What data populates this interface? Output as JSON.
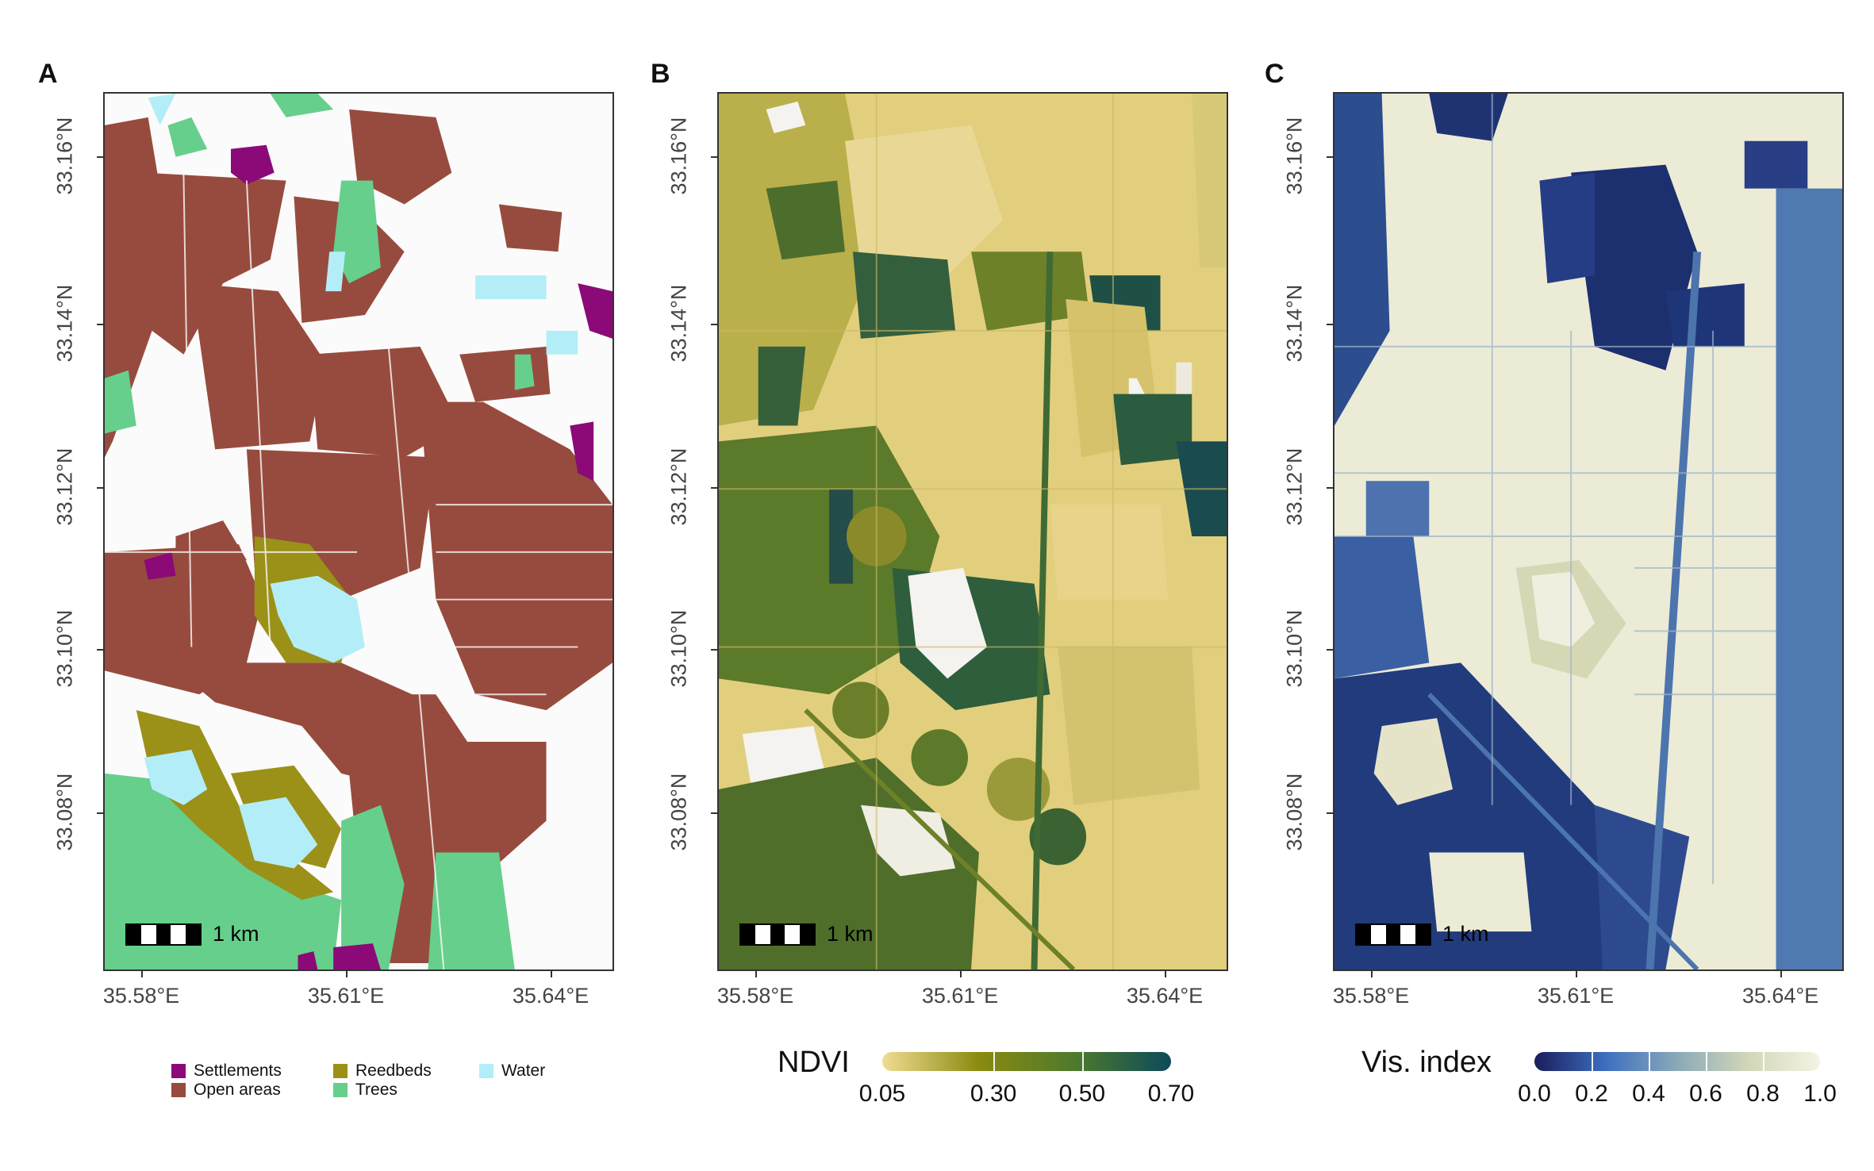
{
  "panels": [
    {
      "letter": "A"
    },
    {
      "letter": "B"
    },
    {
      "letter": "C"
    }
  ],
  "axes": {
    "y_ticks": [
      "33.16°N",
      "33.14°N",
      "33.12°N",
      "33.10°N",
      "33.08°N"
    ],
    "x_ticks": [
      "35.58°E",
      "35.61°E",
      "35.64°E"
    ]
  },
  "scale_bar": {
    "label": "1 km"
  },
  "legend_A": {
    "items": [
      {
        "label": "Settlements",
        "color": "#8b0a77"
      },
      {
        "label": "Open areas",
        "color": "#974b3e"
      },
      {
        "label": "Reedbeds",
        "color": "#9b9118"
      },
      {
        "label": "Trees",
        "color": "#66cf8c"
      },
      {
        "label": "Water",
        "color": "#b3eef8"
      }
    ]
  },
  "colorbar_B": {
    "title": "NDVI",
    "labels": [
      "0.05",
      "0.30",
      "0.50",
      "0.70"
    ],
    "colors": [
      "#f1dc93",
      "#8a8a10",
      "#4e7a2c",
      "#0d4a5a"
    ]
  },
  "colorbar_C": {
    "title": "Vis. index",
    "labels": [
      "0.0",
      "0.2",
      "0.4",
      "0.6",
      "0.8",
      "1.0"
    ],
    "colors": [
      "#1a1d5c",
      "#3d6fc0",
      "#8aa9b8",
      "#d2d7b8",
      "#f4f3e4"
    ]
  }
}
